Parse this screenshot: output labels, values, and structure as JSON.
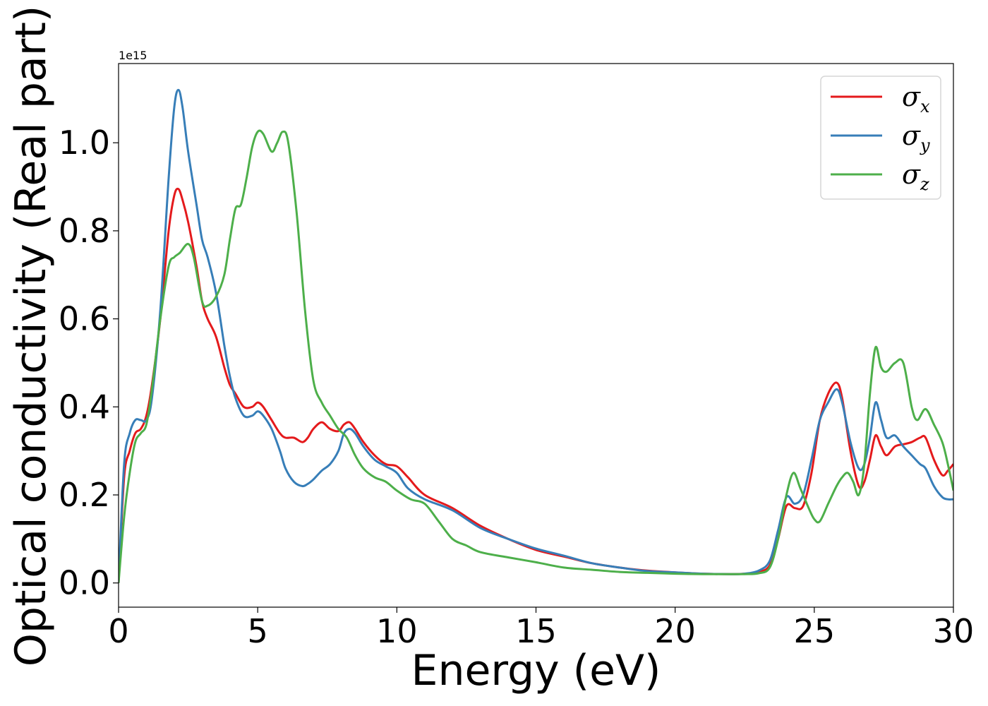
{
  "chart_data": {
    "type": "line",
    "title": "",
    "xlabel": "Energy (eV)",
    "ylabel": "Optical conductivity (Real part)",
    "y_offset_label": "1e15",
    "xlim": [
      0,
      30
    ],
    "ylim": [
      -0.055,
      1.18
    ],
    "xticks": [
      0,
      5,
      10,
      15,
      20,
      25,
      30
    ],
    "xtick_labels": [
      "0",
      "5",
      "10",
      "15",
      "20",
      "25",
      "30"
    ],
    "yticks": [
      0.0,
      0.2,
      0.4,
      0.6,
      0.8,
      1.0
    ],
    "ytick_labels": [
      "0.0",
      "0.2",
      "0.4",
      "0.6",
      "0.8",
      "1.0"
    ],
    "grid": false,
    "legend_position": "top-right",
    "series": [
      {
        "name": "σx",
        "symbol": "σ",
        "subscript": "x",
        "color": "#e41a1c",
        "x": [
          0,
          0.2,
          0.4,
          0.6,
          0.8,
          1.0,
          1.2,
          1.5,
          1.8,
          2.0,
          2.15,
          2.3,
          2.5,
          2.8,
          3.0,
          3.2,
          3.5,
          3.8,
          4.0,
          4.2,
          4.5,
          4.8,
          5.0,
          5.2,
          5.5,
          5.8,
          6.0,
          6.3,
          6.6,
          6.8,
          7.0,
          7.3,
          7.6,
          7.9,
          8.1,
          8.3,
          8.5,
          8.8,
          9.2,
          9.6,
          10.0,
          10.4,
          11.0,
          12.0,
          13.0,
          14.0,
          15.0,
          16.0,
          17.0,
          18.0,
          19.0,
          20.0,
          21.0,
          22.0,
          22.5,
          23.0,
          23.4,
          23.7,
          24.0,
          24.3,
          24.6,
          24.9,
          25.2,
          25.5,
          25.8,
          26.0,
          26.3,
          26.6,
          26.8,
          27.0,
          27.2,
          27.4,
          27.6,
          27.9,
          28.2,
          28.5,
          28.8,
          29.0,
          29.3,
          29.6,
          29.8,
          30.0
        ],
        "y": [
          0.0,
          0.24,
          0.3,
          0.34,
          0.35,
          0.38,
          0.45,
          0.6,
          0.8,
          0.88,
          0.895,
          0.87,
          0.82,
          0.72,
          0.64,
          0.6,
          0.56,
          0.49,
          0.45,
          0.43,
          0.4,
          0.4,
          0.41,
          0.4,
          0.37,
          0.34,
          0.33,
          0.33,
          0.32,
          0.33,
          0.35,
          0.365,
          0.35,
          0.345,
          0.36,
          0.365,
          0.35,
          0.32,
          0.29,
          0.27,
          0.265,
          0.24,
          0.2,
          0.17,
          0.13,
          0.1,
          0.075,
          0.06,
          0.045,
          0.035,
          0.028,
          0.024,
          0.021,
          0.02,
          0.021,
          0.025,
          0.04,
          0.1,
          0.175,
          0.17,
          0.175,
          0.25,
          0.37,
          0.43,
          0.455,
          0.42,
          0.3,
          0.22,
          0.23,
          0.28,
          0.335,
          0.31,
          0.29,
          0.31,
          0.315,
          0.32,
          0.33,
          0.33,
          0.28,
          0.245,
          0.255,
          0.27
        ]
      },
      {
        "name": "σy",
        "symbol": "σ",
        "subscript": "y",
        "color": "#377eb8",
        "x": [
          0,
          0.2,
          0.4,
          0.6,
          0.8,
          1.0,
          1.2,
          1.5,
          1.8,
          2.0,
          2.15,
          2.3,
          2.5,
          2.8,
          3.0,
          3.2,
          3.5,
          3.8,
          4.0,
          4.2,
          4.5,
          4.8,
          5.0,
          5.2,
          5.5,
          5.8,
          6.0,
          6.3,
          6.6,
          6.8,
          7.0,
          7.3,
          7.6,
          7.9,
          8.1,
          8.3,
          8.5,
          8.8,
          9.2,
          9.6,
          10.0,
          10.4,
          11.0,
          12.0,
          13.0,
          14.0,
          15.0,
          16.0,
          17.0,
          18.0,
          19.0,
          20.0,
          21.0,
          22.0,
          22.5,
          23.0,
          23.4,
          23.7,
          24.0,
          24.3,
          24.6,
          24.9,
          25.2,
          25.5,
          25.8,
          26.0,
          26.3,
          26.6,
          26.8,
          27.0,
          27.2,
          27.4,
          27.6,
          27.9,
          28.2,
          28.5,
          28.8,
          29.0,
          29.3,
          29.6,
          29.8,
          30.0
        ],
        "y": [
          0.0,
          0.27,
          0.34,
          0.37,
          0.37,
          0.37,
          0.42,
          0.62,
          0.92,
          1.08,
          1.12,
          1.08,
          0.98,
          0.86,
          0.78,
          0.74,
          0.66,
          0.54,
          0.47,
          0.42,
          0.38,
          0.38,
          0.39,
          0.38,
          0.35,
          0.3,
          0.26,
          0.23,
          0.22,
          0.225,
          0.235,
          0.255,
          0.27,
          0.3,
          0.34,
          0.35,
          0.34,
          0.31,
          0.28,
          0.265,
          0.25,
          0.215,
          0.19,
          0.165,
          0.125,
          0.1,
          0.078,
          0.062,
          0.045,
          0.035,
          0.027,
          0.024,
          0.021,
          0.02,
          0.021,
          0.028,
          0.05,
          0.12,
          0.195,
          0.18,
          0.2,
          0.28,
          0.37,
          0.41,
          0.44,
          0.41,
          0.32,
          0.26,
          0.27,
          0.33,
          0.41,
          0.37,
          0.33,
          0.335,
          0.31,
          0.29,
          0.27,
          0.26,
          0.22,
          0.195,
          0.19,
          0.19
        ]
      },
      {
        "name": "σz",
        "symbol": "σ",
        "subscript": "z",
        "color": "#4daf4a",
        "x": [
          0,
          0.2,
          0.4,
          0.6,
          0.8,
          1.0,
          1.2,
          1.5,
          1.8,
          2.0,
          2.2,
          2.5,
          2.7,
          3.0,
          3.2,
          3.5,
          3.8,
          4.0,
          4.2,
          4.4,
          4.6,
          4.8,
          5.0,
          5.2,
          5.5,
          5.7,
          5.9,
          6.1,
          6.4,
          6.7,
          7.0,
          7.3,
          7.6,
          7.9,
          8.2,
          8.5,
          8.8,
          9.2,
          9.6,
          10.0,
          10.5,
          11.0,
          11.5,
          12.0,
          12.5,
          13.0,
          14.0,
          15.0,
          16.0,
          17.0,
          18.0,
          19.0,
          20.0,
          21.0,
          22.0,
          22.5,
          23.0,
          23.4,
          23.7,
          24.0,
          24.25,
          24.5,
          24.8,
          25.0,
          25.2,
          25.5,
          25.8,
          26.0,
          26.2,
          26.4,
          26.6,
          26.8,
          27.0,
          27.2,
          27.4,
          27.6,
          27.9,
          28.2,
          28.5,
          28.7,
          29.0,
          29.3,
          29.6,
          29.8,
          30.0
        ],
        "y": [
          0.0,
          0.15,
          0.25,
          0.32,
          0.34,
          0.36,
          0.44,
          0.6,
          0.72,
          0.74,
          0.75,
          0.77,
          0.74,
          0.64,
          0.63,
          0.65,
          0.7,
          0.78,
          0.85,
          0.86,
          0.92,
          0.99,
          1.025,
          1.02,
          0.98,
          1.0,
          1.025,
          1.0,
          0.84,
          0.62,
          0.46,
          0.41,
          0.38,
          0.35,
          0.33,
          0.29,
          0.26,
          0.24,
          0.23,
          0.21,
          0.19,
          0.18,
          0.14,
          0.1,
          0.085,
          0.07,
          0.058,
          0.047,
          0.035,
          0.03,
          0.025,
          0.023,
          0.021,
          0.02,
          0.02,
          0.02,
          0.022,
          0.035,
          0.1,
          0.2,
          0.25,
          0.215,
          0.17,
          0.145,
          0.14,
          0.18,
          0.22,
          0.24,
          0.25,
          0.23,
          0.2,
          0.27,
          0.43,
          0.535,
          0.49,
          0.48,
          0.5,
          0.5,
          0.4,
          0.37,
          0.395,
          0.36,
          0.32,
          0.27,
          0.21
        ]
      }
    ]
  }
}
